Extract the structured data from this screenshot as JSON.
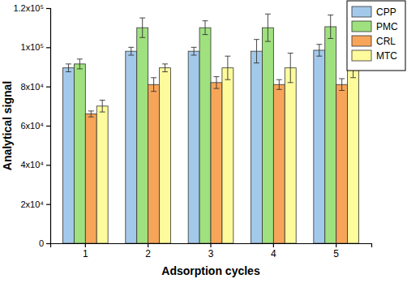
{
  "chart_data": {
    "type": "bar",
    "x_label": "Adsorption cycles",
    "y_label": "Analytical signal",
    "categories": [
      "1",
      "2",
      "3",
      "4",
      "5"
    ],
    "series": [
      {
        "name": "CPP",
        "color": "#a3c9ea",
        "values": [
          89500,
          98000,
          98000,
          98000,
          98500
        ],
        "errors": [
          2000,
          2000,
          2000,
          6000,
          3000
        ]
      },
      {
        "name": "PMC",
        "color": "#9fe07f",
        "values": [
          91500,
          110000,
          110000,
          110000,
          110500
        ],
        "errors": [
          2500,
          5000,
          3500,
          7000,
          6000
        ]
      },
      {
        "name": "CRL",
        "color": "#f7a559",
        "values": [
          66000,
          81000,
          82000,
          81000,
          81000
        ],
        "errors": [
          1500,
          3500,
          3000,
          2500,
          3000
        ]
      },
      {
        "name": "MTC",
        "color": "#fdfb9c",
        "values": [
          70000,
          89500,
          89500,
          89500,
          89500
        ],
        "errors": [
          3000,
          2000,
          6000,
          7500,
          5000
        ]
      }
    ],
    "ylim": [
      0,
      120000
    ],
    "yticks": [
      0,
      {
        "value": 20000,
        "label": "2x10⁴"
      },
      {
        "value": 40000,
        "label": "4x10⁴"
      },
      {
        "value": 60000,
        "label": "6x10⁴"
      },
      {
        "value": 80000,
        "label": "8x10⁴"
      },
      {
        "value": 100000,
        "label": "1x10⁵"
      },
      {
        "value": 120000,
        "label": "1.2x10⁵"
      }
    ],
    "grid": false,
    "legend": "top-right"
  }
}
